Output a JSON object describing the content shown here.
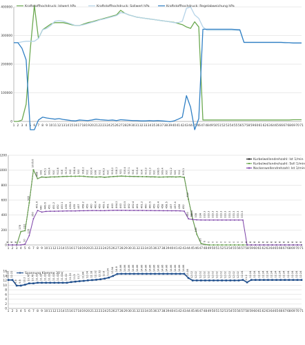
{
  "chart_data": [
    {
      "type": "line",
      "title": "",
      "x": [
        1,
        2,
        3,
        4,
        5,
        6,
        7,
        8,
        9,
        10,
        11,
        12,
        13,
        14,
        15,
        16,
        17,
        18,
        19,
        20,
        21,
        22,
        23,
        24,
        25,
        26,
        27,
        28,
        29,
        30,
        31,
        32,
        33,
        34,
        35,
        36,
        37,
        38,
        39,
        40,
        41,
        42,
        43,
        44,
        45,
        46,
        47,
        48,
        49,
        50,
        51,
        52,
        53,
        54,
        55,
        56,
        57,
        58,
        59,
        60,
        61,
        62,
        63,
        64,
        65,
        66,
        67,
        68,
        69,
        70,
        71
      ],
      "ylim": [
        0,
        400000
      ],
      "yticks": [
        0,
        100000,
        200000,
        300000,
        400000
      ],
      "grid": true,
      "legend_position": "top",
      "series": [
        {
          "name": "Kraftstoffhochdruck: Istwert hPa",
          "color": "#6aa84f",
          "values": [
            0,
            0,
            5000,
            60000,
            250000,
            405000,
            290000,
            320000,
            330000,
            340000,
            345000,
            345000,
            345000,
            342000,
            338000,
            335000,
            335000,
            340000,
            345000,
            348000,
            352000,
            356000,
            360000,
            364000,
            368000,
            372000,
            388000,
            378000,
            372000,
            368000,
            364000,
            362000,
            360000,
            358000,
            356000,
            354000,
            352000,
            350000,
            348000,
            346000,
            342000,
            338000,
            330000,
            325000,
            348000,
            330000,
            5000,
            5000,
            5000,
            5000,
            5000,
            5000,
            5000,
            5000,
            5000,
            5000,
            5000,
            5000,
            5000,
            5000,
            5000,
            5000,
            5000,
            5000,
            5000,
            5000,
            5000,
            5000,
            6000,
            6000,
            6000
          ]
        },
        {
          "name": "Kraftstoffhochdruck: Sollwert hPa",
          "color": "#b4d3e8",
          "values": [
            275000,
            275000,
            278000,
            280000,
            280000,
            280000,
            290000,
            320000,
            325000,
            335000,
            350000,
            352000,
            350000,
            345000,
            340000,
            335000,
            335000,
            338000,
            342000,
            346000,
            350000,
            355000,
            358000,
            362000,
            366000,
            370000,
            380000,
            378000,
            372000,
            368000,
            364000,
            362000,
            360000,
            358000,
            356000,
            354000,
            352000,
            350000,
            348000,
            345000,
            345000,
            350000,
            395000,
            400000,
            372000,
            360000,
            330000,
            318000,
            318000,
            318000,
            318000,
            318000,
            318000,
            318000,
            318000,
            318000,
            276000,
            276000,
            276000,
            276000,
            276000,
            276000,
            276000,
            276000,
            276000,
            276000,
            276000,
            275000,
            274000,
            274000,
            274000
          ]
        },
        {
          "name": "Kraftstoffhochdruck: Regelabweichung hPa",
          "color": "#2f7fc4",
          "values": [
            275000,
            275000,
            255000,
            215000,
            -45000,
            -65000,
            5000,
            15000,
            12000,
            10000,
            8000,
            10000,
            7000,
            5000,
            3000,
            2000,
            5000,
            4000,
            3000,
            5000,
            8000,
            6000,
            5000,
            4000,
            5000,
            3000,
            6000,
            5000,
            4000,
            3000,
            3000,
            2000,
            2000,
            3000,
            2000,
            3000,
            2000,
            1000,
            -1000,
            2000,
            8000,
            15000,
            90000,
            50000,
            -40000,
            10000,
            322000,
            322000,
            322000,
            322000,
            322000,
            322000,
            322000,
            322000,
            321000,
            320000,
            276000,
            276000,
            276000,
            276000,
            276000,
            276000,
            276000,
            276000,
            276000,
            276000,
            275000,
            275000,
            274000,
            274000,
            274000
          ]
        }
      ]
    },
    {
      "type": "line",
      "title": "",
      "x": [
        1,
        2,
        3,
        4,
        5,
        6,
        7,
        8,
        9,
        10,
        11,
        12,
        13,
        14,
        15,
        16,
        17,
        18,
        19,
        20,
        21,
        22,
        23,
        24,
        25,
        26,
        27,
        28,
        29,
        30,
        31,
        32,
        33,
        34,
        35,
        36,
        37,
        38,
        39,
        40,
        41,
        42,
        43,
        44,
        45,
        46,
        47,
        48,
        49,
        50,
        51,
        52,
        53,
        54,
        55,
        56,
        57,
        58,
        59,
        60,
        61,
        62,
        63,
        64,
        65,
        66,
        67,
        68,
        69,
        70,
        71
      ],
      "ylim": [
        0,
        1200
      ],
      "yticks": [
        0,
        200,
        400,
        600,
        800,
        1000,
        1200
      ],
      "grid": true,
      "legend_position": "top-right",
      "series": [
        {
          "name": "Kurbelwellendrehzahl: Ist 1/min",
          "color": "#1a1a1a",
          "values": [
            0,
            0,
            0,
            178,
            191,
            565,
            1005,
            888,
            909,
            905,
            909,
            910,
            912,
            916,
            917,
            919,
            918,
            920,
            918,
            912,
            910,
            908,
            911,
            906,
            910,
            915,
            918,
            921,
            919,
            917,
            916,
            915,
            914,
            913,
            911,
            910,
            908,
            909,
            910,
            911,
            909,
            912,
            905,
            612,
            350,
            143,
            20,
            6,
            0,
            0,
            0,
            0,
            0,
            0,
            0,
            0,
            0,
            0,
            0,
            0,
            0,
            0,
            0,
            0,
            0,
            0,
            0,
            0,
            0,
            0,
            0
          ]
        },
        {
          "name": "Kurbelwellendrehzahl: Soll 1/min",
          "color": "#6aa84f",
          "values": [
            0,
            0,
            0,
            178,
            191,
            565,
            1005,
            888,
            909,
            905,
            909,
            910,
            912,
            916,
            917,
            919,
            918,
            920,
            918,
            912,
            910,
            908,
            911,
            906,
            910,
            915,
            918,
            921,
            919,
            917,
            916,
            915,
            914,
            913,
            911,
            910,
            908,
            909,
            910,
            911,
            909,
            912,
            905,
            612,
            350,
            143,
            20,
            6,
            0,
            0,
            0,
            0,
            0,
            0,
            0,
            0,
            0,
            0,
            0,
            0,
            0,
            0,
            0,
            0,
            0,
            0,
            0,
            0,
            0,
            0,
            0
          ]
        },
        {
          "name": "Nockenwellendrehzahl: Ist 1/min",
          "color": "#7a3fa6",
          "values": [
            0,
            0,
            0,
            0,
            10,
            125,
            350,
            461,
            440,
            449,
            451,
            451,
            452,
            453,
            455,
            455,
            455,
            457,
            458,
            459,
            460,
            460,
            459,
            459,
            461,
            463,
            464,
            463,
            463,
            462,
            462,
            461,
            461,
            460,
            460,
            459,
            459,
            458,
            458,
            457,
            457,
            456,
            452,
            350,
            340,
            336,
            334,
            333,
            333,
            333,
            333,
            333,
            333,
            333,
            333,
            333,
            333,
            0,
            0,
            0,
            0,
            0,
            0,
            0,
            0,
            0,
            0,
            0,
            0,
            0,
            0
          ]
        }
      ],
      "labels_black": [
        "0",
        "0",
        "0",
        "178",
        "191",
        "565",
        "1005.6",
        "888",
        "909",
        "905.1",
        "909.4",
        "910",
        "912.6",
        "916",
        "917.8",
        "919",
        "918.4",
        "920",
        "918.2",
        "912",
        "910.4",
        "908",
        "911",
        "906.3",
        "910",
        "915.2",
        "918.2",
        "921",
        "919.4",
        "917.1",
        "916",
        "915.4",
        "914",
        "913.2",
        "911.3",
        "910",
        "908.6",
        "909.4",
        "910",
        "911.2",
        "909",
        "912",
        "905.1",
        "612",
        "350",
        "143",
        "20",
        "6",
        "0",
        "0",
        "0",
        "0",
        "0",
        "0",
        "0",
        "0",
        "0",
        "0",
        "0",
        "0",
        "0",
        "0",
        "0",
        "0",
        "0",
        "0",
        "0",
        "0",
        "0",
        "0",
        "0"
      ],
      "labels_purple": [
        "0",
        "0",
        "0",
        "0",
        "10",
        "125",
        "350",
        "461.6",
        "440",
        "449.6",
        "451",
        "451.2",
        "452",
        "453.1",
        "455",
        "455.6",
        "455",
        "457",
        "458.2",
        "459",
        "460",
        "460.4",
        "459",
        "459.1",
        "461",
        "463",
        "464.2",
        "463",
        "463.5",
        "462",
        "462.4",
        "461",
        "461.2",
        "460",
        "460.5",
        "459",
        "459.4",
        "458",
        "458.5",
        "457",
        "457.4",
        "456",
        "452",
        "350",
        "340.6",
        "336",
        "334",
        "333.3",
        "333.3",
        "333.3",
        "333.3",
        "333.3",
        "333.3",
        "333.3",
        "333.3",
        "333.3",
        "333.3",
        "0",
        "0",
        "0",
        "0",
        "0",
        "0",
        "0",
        "0",
        "0",
        "0",
        "0",
        "0",
        "0",
        "0"
      ]
    },
    {
      "type": "line",
      "title": "",
      "x": [
        1,
        2,
        3,
        4,
        5,
        6,
        7,
        8,
        9,
        10,
        11,
        12,
        13,
        14,
        15,
        16,
        17,
        18,
        19,
        20,
        21,
        22,
        23,
        24,
        25,
        26,
        27,
        28,
        29,
        30,
        31,
        32,
        33,
        34,
        35,
        36,
        37,
        38,
        39,
        40,
        41,
        42,
        43,
        44,
        45,
        46,
        47,
        48,
        49,
        50,
        51,
        52,
        53,
        54,
        55,
        56,
        57,
        58,
        59,
        60,
        61,
        62,
        63,
        64,
        65,
        66,
        67,
        68,
        69,
        70,
        71
      ],
      "ylim": [
        0,
        16
      ],
      "yticks": [
        0,
        2,
        4,
        6,
        8,
        10,
        12,
        14,
        16
      ],
      "grid": true,
      "legend_position": "top-left",
      "series": [
        {
          "name": "Spannung Klemme 30 V",
          "color": "#1f4e8c",
          "values": [
            12.22,
            12.22,
            9.8,
            9.8,
            10.2,
            10.76,
            10.76,
            11.02,
            11.02,
            11.02,
            11.02,
            11.02,
            11.02,
            11.02,
            11.02,
            11.32,
            11.5,
            11.7,
            11.84,
            12.04,
            12.18,
            12.32,
            12.52,
            12.8,
            13.24,
            13.94,
            14.8,
            14.86,
            14.86,
            14.86,
            14.86,
            14.86,
            14.86,
            14.86,
            14.86,
            14.86,
            14.86,
            14.86,
            14.86,
            14.86,
            14.86,
            14.86,
            14.86,
            13.06,
            12.02,
            12.02,
            12.02,
            12.02,
            12.02,
            12.02,
            12.02,
            12.02,
            12.02,
            12.02,
            12.02,
            12.02,
            12.24,
            11.2,
            12.24,
            12.24,
            12.24,
            12.24,
            12.24,
            12.24,
            12.24,
            12.24,
            12.24,
            12.24,
            12.24,
            12.24,
            12.24
          ]
        }
      ],
      "labels": [
        "12.22",
        "12.22",
        "9.8",
        "9.8",
        "10.2",
        "10.76",
        "10.76",
        "11.02",
        "11.02",
        "11.02",
        "11.02",
        "11.02",
        "11.02",
        "11.02",
        "11.02",
        "11.32",
        "11.5",
        "11.7",
        "11.84",
        "12.04",
        "12.18",
        "12.32",
        "12.52",
        "12.8",
        "13.24",
        "13.94",
        "14.8",
        "14.86",
        "14.86",
        "14.86",
        "14.86",
        "14.86",
        "14.86",
        "14.86",
        "14.86",
        "14.86",
        "14.86",
        "14.86",
        "14.86",
        "14.86",
        "14.86",
        "14.86",
        "14.86",
        "13.06",
        "12.02",
        "12.02",
        "12.02",
        "12.02",
        "12.02",
        "12.02",
        "12.02",
        "12.02",
        "12.02",
        "12.02",
        "12.02",
        "12.02",
        "12.24",
        "11.2",
        "12.24",
        "12.24",
        "12.24",
        "12.24",
        "12.24",
        "12.24",
        "12.24",
        "12.24",
        "12.24",
        "12.24",
        "12.24",
        "12.24",
        "12.24"
      ]
    }
  ]
}
